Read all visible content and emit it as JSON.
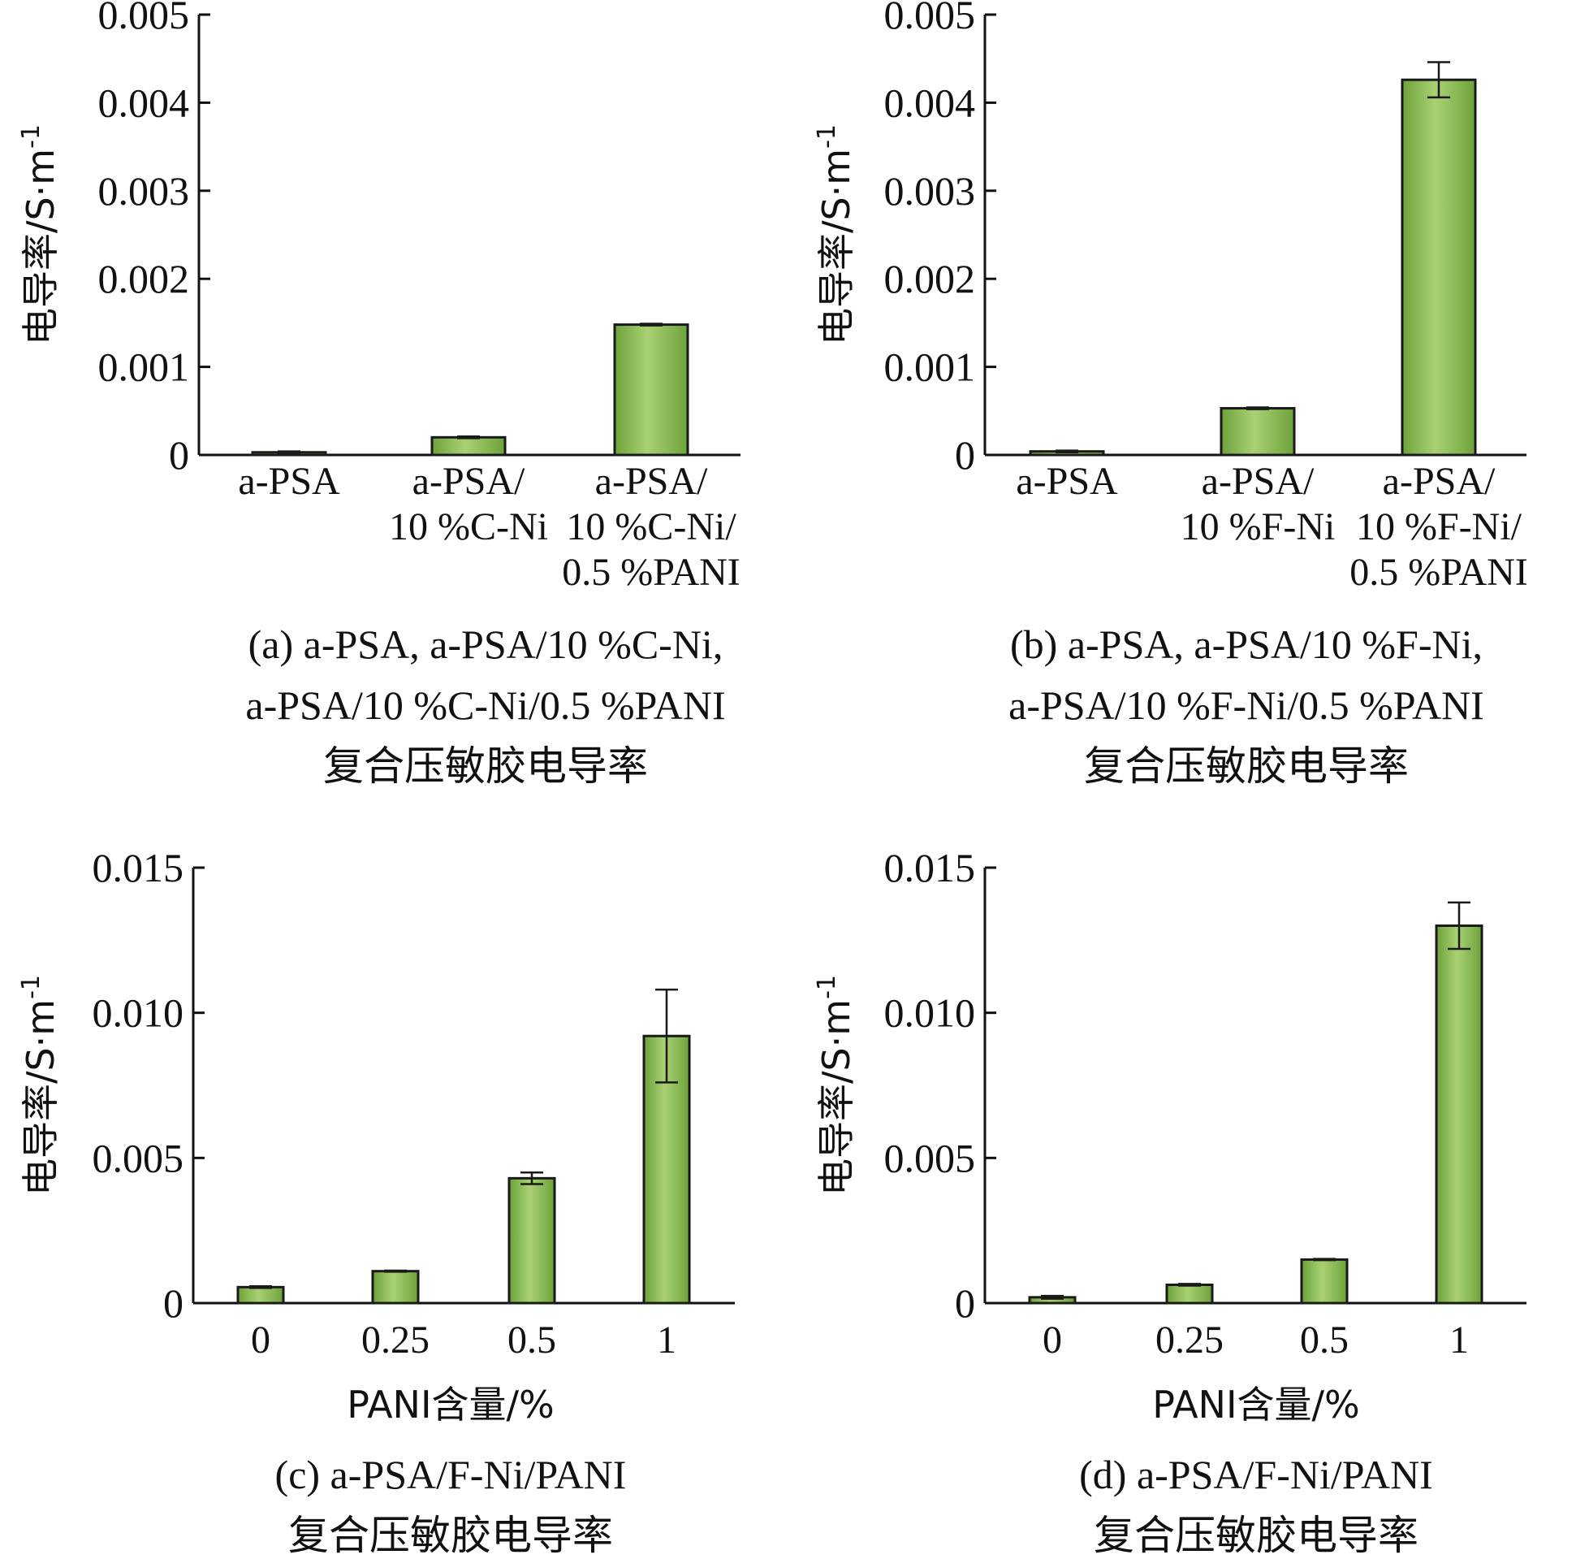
{
  "theme": {
    "bar_fill_top": "#a9d173",
    "bar_fill_mid": "#8cc152",
    "bar_fill_bottom": "#6da23a",
    "bar_stroke": "#1a1a1a",
    "axis_color": "#111111"
  },
  "chart_data": [
    {
      "id": "a",
      "type": "bar",
      "categories": [
        [
          "a-PSA"
        ],
        [
          "a-PSA/",
          "10 %C-Ni"
        ],
        [
          "a-PSA/",
          "10 %C-Ni/",
          "0.5 %PANI"
        ]
      ],
      "values": [
        3e-05,
        0.0002,
        0.00148
      ],
      "errors": [
        1e-05,
        1e-05,
        1e-05
      ],
      "ylim": [
        0,
        0.005
      ],
      "yticks": [
        "0",
        "0.001",
        "0.002",
        "0.003",
        "0.004",
        "0.005"
      ],
      "ylabel": "电导率/S·m",
      "ylabel_sup": "-1",
      "xlabel": "",
      "caption": [
        "(a) a-PSA, a-PSA/10 %C-Ni,",
        "a-PSA/10 %C-Ni/0.5 %PANI",
        "复合压敏胶电导率"
      ]
    },
    {
      "id": "b",
      "type": "bar",
      "categories": [
        [
          "a-PSA"
        ],
        [
          "a-PSA/",
          "10 %F-Ni"
        ],
        [
          "a-PSA/",
          "10 %F-Ni/",
          "0.5 %PANI"
        ]
      ],
      "values": [
        4e-05,
        0.00053,
        0.00426
      ],
      "errors": [
        1e-05,
        1e-05,
        0.0002
      ],
      "ylim": [
        0,
        0.005
      ],
      "yticks": [
        "0",
        "0.001",
        "0.002",
        "0.003",
        "0.004",
        "0.005"
      ],
      "ylabel": "电导率/S·m",
      "ylabel_sup": "-1",
      "xlabel": "",
      "caption": [
        "(b) a-PSA, a-PSA/10 %F-Ni,",
        "a-PSA/10 %F-Ni/0.5 %PANI",
        "复合压敏胶电导率"
      ]
    },
    {
      "id": "c",
      "type": "bar",
      "categories": [
        [
          "0"
        ],
        [
          "0.25"
        ],
        [
          "0.5"
        ],
        [
          "1"
        ]
      ],
      "values": [
        0.00055,
        0.0011,
        0.0043,
        0.0092
      ],
      "errors": [
        3e-05,
        2e-05,
        0.0002,
        0.0016
      ],
      "ylim": [
        0,
        0.015
      ],
      "yticks": [
        "0",
        "0.005",
        "0.010",
        "0.015"
      ],
      "ylabel": "电导率/S·m",
      "ylabel_sup": "-1",
      "xlabel": "PANI含量/%",
      "caption": [
        "(c) a-PSA/F-Ni/PANI",
        "复合压敏胶电导率"
      ]
    },
    {
      "id": "d",
      "type": "bar",
      "categories": [
        [
          "0"
        ],
        [
          "0.25"
        ],
        [
          "0.5"
        ],
        [
          "1"
        ]
      ],
      "values": [
        0.0002,
        0.00063,
        0.0015,
        0.013
      ],
      "errors": [
        5e-05,
        3e-05,
        2e-05,
        0.0008
      ],
      "ylim": [
        0,
        0.015
      ],
      "yticks": [
        "0",
        "0.005",
        "0.010",
        "0.015"
      ],
      "ylabel": "电导率/S·m",
      "ylabel_sup": "-1",
      "xlabel": "PANI含量/%",
      "caption": [
        "(d) a-PSA/F-Ni/PANI",
        "复合压敏胶电导率"
      ]
    }
  ]
}
